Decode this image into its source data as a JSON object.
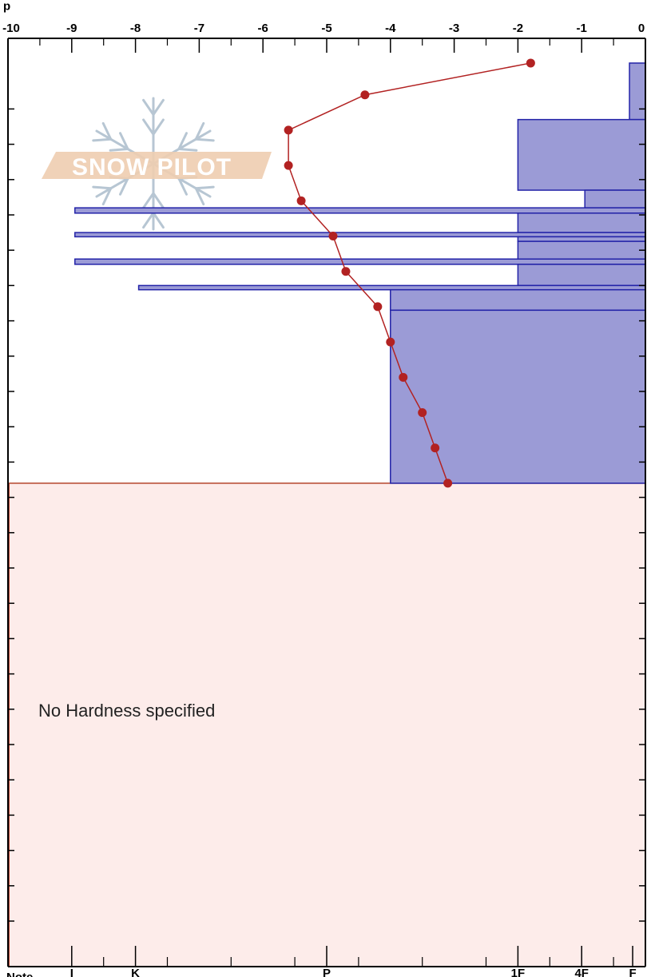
{
  "chart_data": {
    "type": "snow-profile",
    "top_axis": {
      "label": "p",
      "range": [
        -10,
        0
      ],
      "ticks": [
        "-10",
        "-9",
        "-8",
        "-7",
        "-6",
        "-5",
        "-4",
        "-3",
        "-2",
        "-1",
        "0"
      ]
    },
    "bottom_axis": {
      "labels": [
        "I",
        "K",
        "P",
        "1F",
        "4F",
        "F"
      ],
      "values": [
        -9,
        -8,
        -5,
        -2,
        -1,
        -0.2
      ]
    },
    "temperature_series": {
      "points": [
        {
          "temp": -1.8,
          "depth": 0.7
        },
        {
          "temp": -4.4,
          "depth": 1.6
        },
        {
          "temp": -5.6,
          "depth": 2.6
        },
        {
          "temp": -5.6,
          "depth": 3.6
        },
        {
          "temp": -5.4,
          "depth": 4.6
        },
        {
          "temp": -4.9,
          "depth": 5.6
        },
        {
          "temp": -4.7,
          "depth": 6.6
        },
        {
          "temp": -4.2,
          "depth": 7.6
        },
        {
          "temp": -4.0,
          "depth": 8.6
        },
        {
          "temp": -3.8,
          "depth": 9.6
        },
        {
          "temp": -3.5,
          "depth": 10.6
        },
        {
          "temp": -3.3,
          "depth": 11.6
        },
        {
          "temp": -3.1,
          "depth": 12.6
        }
      ],
      "color": "#b22222"
    },
    "hardness_layers": [
      {
        "top": 0.7,
        "bottom": 2.3,
        "hardness": -0.25
      },
      {
        "top": 2.3,
        "bottom": 4.3,
        "hardness": -2.0
      },
      {
        "top": 4.3,
        "bottom": 4.8,
        "hardness": -0.95
      },
      {
        "top": 4.8,
        "bottom": 4.95,
        "hardness": -8.95
      },
      {
        "top": 4.95,
        "bottom": 5.5,
        "hardness": -2.0
      },
      {
        "top": 5.5,
        "bottom": 5.62,
        "hardness": -8.95
      },
      {
        "top": 5.62,
        "bottom": 5.75,
        "hardness": -2.0
      },
      {
        "top": 5.75,
        "bottom": 6.25,
        "hardness": -2.0
      },
      {
        "top": 6.25,
        "bottom": 6.4,
        "hardness": -8.95
      },
      {
        "top": 6.4,
        "bottom": 7.0,
        "hardness": -2.0
      },
      {
        "top": 7.0,
        "bottom": 7.12,
        "hardness": -7.95
      },
      {
        "top": 7.12,
        "bottom": 7.7,
        "hardness": -4.0
      },
      {
        "top": 7.7,
        "bottom": 12.6,
        "hardness": -4.0
      }
    ],
    "layer_fill": "#9b9bd6",
    "layer_stroke": "#2323a8",
    "unspecified_region": {
      "top": 12.6,
      "bottom": 26.0,
      "fill": "#fdecea"
    },
    "depth_range": [
      0,
      26
    ],
    "annotations": [
      "No Hardness specified"
    ]
  },
  "logo": {
    "text": "SNOW PILOT"
  },
  "bottom_caption": "Note"
}
